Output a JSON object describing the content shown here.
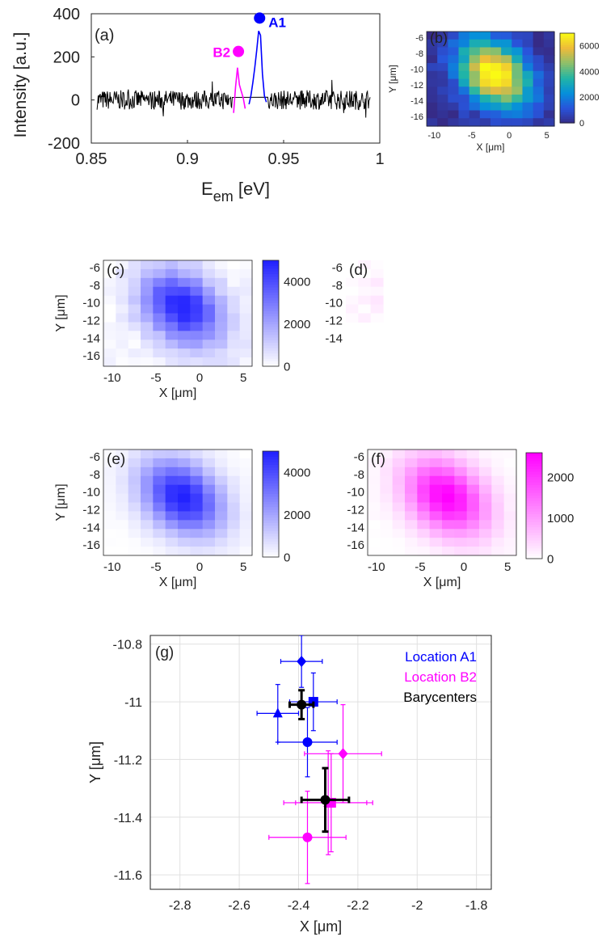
{
  "colors": {
    "blue": "#0000ff",
    "magenta": "#ff00ff",
    "black": "#000000",
    "grid": "#e0e0e0"
  },
  "chart_data": [
    {
      "panel": "(a)",
      "type": "line",
      "xlabel": "E",
      "xlabel_sub": "em",
      "xlabel_unit": " [eV]",
      "ylabel": "Intensity [a.u.]",
      "xlim": [
        0.85,
        1.0
      ],
      "ylim": [
        -200,
        400
      ],
      "xticks": [
        0.85,
        0.9,
        0.95,
        1.0
      ],
      "xtick_labels": [
        "0.85",
        "0.9",
        "0.95",
        "1"
      ],
      "yticks": [
        -200,
        0,
        200,
        400
      ],
      "ytick_labels": [
        "-200",
        "0",
        "200",
        "400"
      ],
      "noise_baseline": {
        "x_range": [
          0.853,
          0.995
        ],
        "amplitude": 45
      },
      "series": [
        {
          "name": "A1",
          "color": "blue",
          "x": [
            0.932,
            0.933,
            0.934,
            0.935,
            0.936,
            0.937,
            0.938,
            0.939,
            0.94,
            0.941
          ],
          "y": [
            -20,
            20,
            80,
            150,
            230,
            320,
            300,
            120,
            20,
            -10
          ]
        },
        {
          "name": "B2",
          "color": "magenta",
          "x": [
            0.924,
            0.925,
            0.926,
            0.927,
            0.928,
            0.929,
            0.93
          ],
          "y": [
            -60,
            60,
            150,
            70,
            40,
            10,
            -40
          ]
        }
      ],
      "markers": [
        {
          "label": "A1",
          "x": 0.9375,
          "y": 380,
          "color": "blue"
        },
        {
          "label": "B2",
          "x": 0.9265,
          "y": 225,
          "color": "magenta"
        }
      ]
    },
    {
      "panel": "(b)",
      "type": "heatmap",
      "colormap": "parula",
      "xlabel": "X [μm]",
      "ylabel": "Y [μm]",
      "xtick_labels": [
        "-10",
        "-5",
        "0",
        "5"
      ],
      "ytick_labels": [
        "-6",
        "-8",
        "-10",
        "-12",
        "-14",
        "-16"
      ],
      "colorbar_ticks": [
        "0",
        "2000",
        "4000",
        "6000"
      ],
      "clim": [
        0,
        7000
      ]
    },
    {
      "panel": "(c)",
      "type": "heatmap",
      "colormap": "white-blue",
      "xlabel": "X [μm]",
      "ylabel": "Y [μm]",
      "xtick_labels": [
        "-10",
        "-5",
        "0",
        "5"
      ],
      "ytick_labels": [
        "-6",
        "-8",
        "-10",
        "-12",
        "-14",
        "-16"
      ],
      "colorbar_ticks": [
        "0",
        "2000",
        "4000"
      ],
      "clim": [
        0,
        5000
      ]
    },
    {
      "panel": "(d)",
      "type": "heatmap",
      "colormap": "white-magenta",
      "ytick_labels": [
        "-6",
        "-8",
        "-10",
        "-12",
        "-14"
      ],
      "partial": true
    },
    {
      "panel": "(e)",
      "type": "heatmap",
      "colormap": "white-blue",
      "xlabel": "X [μm]",
      "ylabel": "Y [μm]",
      "xtick_labels": [
        "-10",
        "-5",
        "0",
        "5"
      ],
      "ytick_labels": [
        "-6",
        "-8",
        "-10",
        "-12",
        "-14",
        "-16"
      ],
      "colorbar_ticks": [
        "0",
        "2000",
        "4000"
      ],
      "clim": [
        0,
        5000
      ]
    },
    {
      "panel": "(f)",
      "type": "heatmap",
      "colormap": "white-magenta",
      "xlabel": "X [μm]",
      "xtick_labels": [
        "-10",
        "-5",
        "0",
        "5"
      ],
      "ytick_labels": [
        "-6",
        "-8",
        "-10",
        "-12",
        "-14",
        "-16"
      ],
      "colorbar_ticks": [
        "0",
        "1000",
        "2000"
      ],
      "clim": [
        0,
        2600
      ]
    },
    {
      "panel": "(g)",
      "type": "scatter",
      "xlabel": "X [μm]",
      "ylabel": "Y [μm]",
      "xlim": [
        -2.9,
        -1.75
      ],
      "ylim": [
        -11.65,
        -10.77
      ],
      "grid": true,
      "xticks": [
        -2.8,
        -2.6,
        -2.4,
        -2.2,
        -2.0,
        -1.8
      ],
      "xtick_labels": [
        "-2.8",
        "-2.6",
        "-2.4",
        "-2.2",
        "-2",
        "-1.8"
      ],
      "yticks": [
        -10.8,
        -11.0,
        -11.2,
        -11.4,
        -11.6
      ],
      "ytick_labels": [
        "-10.8",
        "-11",
        "-11.2",
        "-11.4",
        "-11.6"
      ],
      "legend": {
        "position": "top-right",
        "entries": [
          {
            "label": "Location A1",
            "color": "blue"
          },
          {
            "label": "Location B2",
            "color": "magenta"
          },
          {
            "label": "Barycenters",
            "color": "black"
          }
        ]
      },
      "series": [
        {
          "name": "Location A1",
          "color": "blue",
          "points": [
            {
              "marker": "diamond",
              "x": -2.39,
              "y": -10.86,
              "xerr": 0.07,
              "yerr": 0.09
            },
            {
              "marker": "square",
              "x": -2.35,
              "y": -11.0,
              "xerr": 0.08,
              "yerr": 0.1
            },
            {
              "marker": "triangle",
              "x": -2.47,
              "y": -11.04,
              "xerr": 0.07,
              "yerr": 0.1
            },
            {
              "marker": "circle",
              "x": -2.37,
              "y": -11.14,
              "xerr": 0.1,
              "yerr": 0.12
            }
          ]
        },
        {
          "name": "Location B2",
          "color": "magenta",
          "points": [
            {
              "marker": "diamond",
              "x": -2.25,
              "y": -11.18,
              "xerr": 0.13,
              "yerr": 0.17
            },
            {
              "marker": "square",
              "x": -2.29,
              "y": -11.35,
              "xerr": 0.12,
              "yerr": 0.17
            },
            {
              "marker": "triangle",
              "x": -2.3,
              "y": -11.35,
              "xerr": 0.15,
              "yerr": 0.18
            },
            {
              "marker": "circle",
              "x": -2.37,
              "y": -11.47,
              "xerr": 0.13,
              "yerr": 0.16
            }
          ]
        },
        {
          "name": "Barycenters",
          "color": "black",
          "points": [
            {
              "marker": "circle",
              "x": -2.39,
              "y": -11.01,
              "xerr": 0.04,
              "yerr": 0.05
            },
            {
              "marker": "circle",
              "x": -2.31,
              "y": -11.34,
              "xerr": 0.08,
              "yerr": 0.11
            }
          ]
        }
      ]
    }
  ]
}
